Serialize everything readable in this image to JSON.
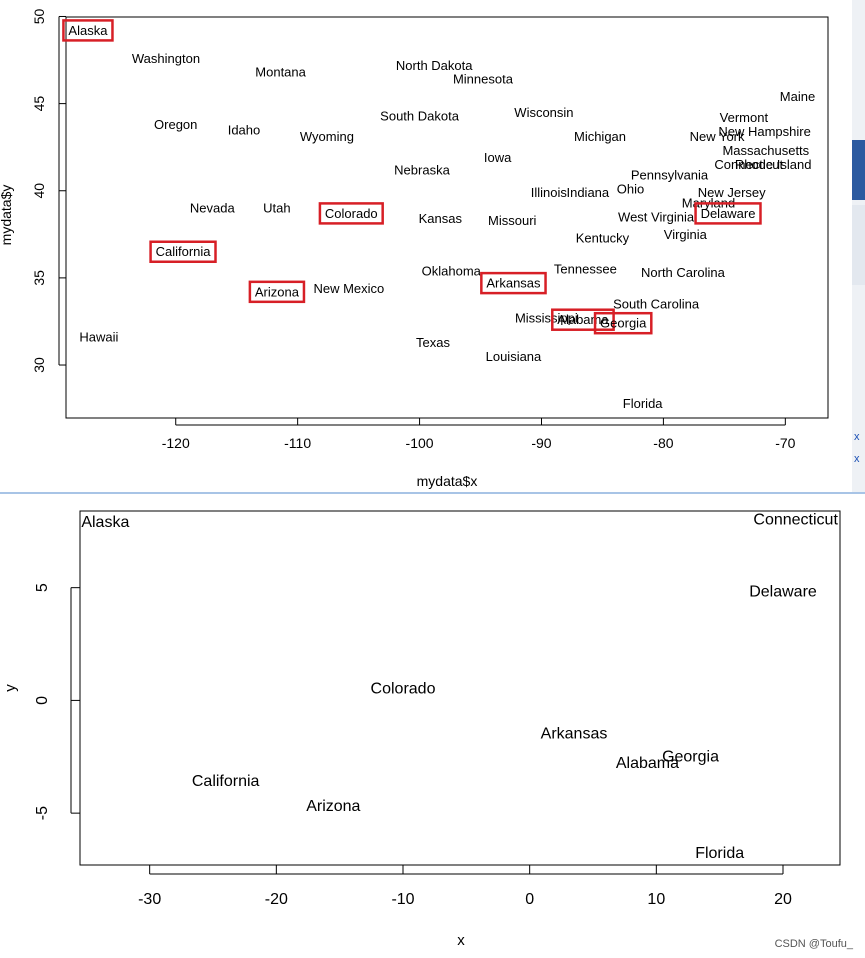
{
  "chart_data": [
    {
      "type": "scatter",
      "title": "",
      "xlabel": "mydata$x",
      "ylabel": "mydata$y",
      "xlim": [
        -129,
        -66.5
      ],
      "ylim": [
        26.96,
        49.97
      ],
      "xticks": [
        -120,
        -110,
        -100,
        -90,
        -80,
        -70
      ],
      "yticks": [
        30,
        35,
        40,
        45,
        50
      ],
      "points": [
        {
          "label": "Alaska",
          "x": -127.2,
          "y": 49.2,
          "highlighted": true
        },
        {
          "label": "Washington",
          "x": -120.8,
          "y": 47.6
        },
        {
          "label": "Montana",
          "x": -111.4,
          "y": 46.8
        },
        {
          "label": "North Dakota",
          "x": -98.8,
          "y": 47.2
        },
        {
          "label": "Minnesota",
          "x": -94.8,
          "y": 46.4
        },
        {
          "label": "Maine",
          "x": -69.0,
          "y": 45.4
        },
        {
          "label": "Vermont",
          "x": -73.4,
          "y": 44.2
        },
        {
          "label": "New Hampshire",
          "x": -71.7,
          "y": 43.4
        },
        {
          "label": "Wisconsin",
          "x": -89.8,
          "y": 44.5
        },
        {
          "label": "Oregon",
          "x": -120.0,
          "y": 43.8
        },
        {
          "label": "Idaho",
          "x": -114.4,
          "y": 43.5
        },
        {
          "label": "South Dakota",
          "x": -100.0,
          "y": 44.3
        },
        {
          "label": "Michigan",
          "x": -85.2,
          "y": 43.1
        },
        {
          "label": "New York",
          "x": -75.6,
          "y": 43.1
        },
        {
          "label": "Wyoming",
          "x": -107.6,
          "y": 43.1
        },
        {
          "label": "Massachusetts",
          "x": -71.6,
          "y": 42.3
        },
        {
          "label": "Connecticut",
          "x": -73.0,
          "y": 41.5
        },
        {
          "label": "Rhode Island",
          "x": -71.0,
          "y": 41.5
        },
        {
          "label": "Iowa",
          "x": -93.6,
          "y": 41.9
        },
        {
          "label": "Nebraska",
          "x": -99.8,
          "y": 41.2
        },
        {
          "label": "Pennsylvania",
          "x": -79.5,
          "y": 40.9
        },
        {
          "label": "Illinois",
          "x": -89.4,
          "y": 39.9
        },
        {
          "label": "Indiana",
          "x": -86.2,
          "y": 39.9
        },
        {
          "label": "Ohio",
          "x": -82.7,
          "y": 40.1
        },
        {
          "label": "New Jersey",
          "x": -74.4,
          "y": 39.9
        },
        {
          "label": "Maryland",
          "x": -76.3,
          "y": 39.3
        },
        {
          "label": "Nevada",
          "x": -117.0,
          "y": 39.0
        },
        {
          "label": "Utah",
          "x": -111.7,
          "y": 39.0
        },
        {
          "label": "Colorado",
          "x": -105.6,
          "y": 38.7,
          "highlighted": true
        },
        {
          "label": "Delaware",
          "x": -74.7,
          "y": 38.7,
          "highlighted": true
        },
        {
          "label": "Kansas",
          "x": -98.3,
          "y": 38.4
        },
        {
          "label": "Missouri",
          "x": -92.4,
          "y": 38.3
        },
        {
          "label": "West Virginia",
          "x": -80.6,
          "y": 38.5
        },
        {
          "label": "Virginia",
          "x": -78.2,
          "y": 37.5
        },
        {
          "label": "Kentucky",
          "x": -85.0,
          "y": 37.3
        },
        {
          "label": "California",
          "x": -119.4,
          "y": 36.5,
          "highlighted": true
        },
        {
          "label": "Oklahoma",
          "x": -97.4,
          "y": 35.4
        },
        {
          "label": "Tennessee",
          "x": -86.4,
          "y": 35.5
        },
        {
          "label": "North Carolina",
          "x": -78.4,
          "y": 35.3
        },
        {
          "label": "Arkansas",
          "x": -92.3,
          "y": 34.7,
          "highlighted": true
        },
        {
          "label": "Arizona",
          "x": -111.7,
          "y": 34.2,
          "highlighted": true
        },
        {
          "label": "New Mexico",
          "x": -105.8,
          "y": 34.4
        },
        {
          "label": "South Carolina",
          "x": -80.6,
          "y": 33.5
        },
        {
          "label": "Mississippi",
          "x": -89.6,
          "y": 32.7
        },
        {
          "label": "Alabama",
          "x": -86.6,
          "y": 32.6,
          "highlighted": true
        },
        {
          "label": "Georgia",
          "x": -83.3,
          "y": 32.4,
          "highlighted": true
        },
        {
          "label": "Hawaii",
          "x": -126.3,
          "y": 31.6
        },
        {
          "label": "Texas",
          "x": -98.9,
          "y": 31.3
        },
        {
          "label": "Louisiana",
          "x": -92.3,
          "y": 30.5
        },
        {
          "label": "Florida",
          "x": -81.7,
          "y": 27.8
        }
      ]
    },
    {
      "type": "scatter",
      "title": "",
      "xlabel": "x",
      "ylabel": "y",
      "xlim": [
        -35.5,
        24.5
      ],
      "ylim": [
        -7.3,
        8.4
      ],
      "xticks": [
        -30,
        -20,
        -10,
        0,
        10,
        20
      ],
      "yticks": [
        -5,
        0,
        5
      ],
      "points": [
        {
          "label": "Alaska",
          "x": -33.5,
          "y": 7.9
        },
        {
          "label": "Connecticut",
          "x": 21.0,
          "y": 8.0
        },
        {
          "label": "Delaware",
          "x": 20.0,
          "y": 4.8
        },
        {
          "label": "Colorado",
          "x": -10.0,
          "y": 0.5
        },
        {
          "label": "Arkansas",
          "x": 3.5,
          "y": -1.5
        },
        {
          "label": "Georgia",
          "x": 12.7,
          "y": -2.5
        },
        {
          "label": "Alabama",
          "x": 9.3,
          "y": -2.8
        },
        {
          "label": "California",
          "x": -24.0,
          "y": -3.6
        },
        {
          "label": "Arizona",
          "x": -15.5,
          "y": -4.7
        },
        {
          "label": "Florida",
          "x": 15.0,
          "y": -6.8
        }
      ]
    }
  ],
  "watermark": "CSDN @Toufu_",
  "side_markers": [
    "x",
    "x"
  ]
}
